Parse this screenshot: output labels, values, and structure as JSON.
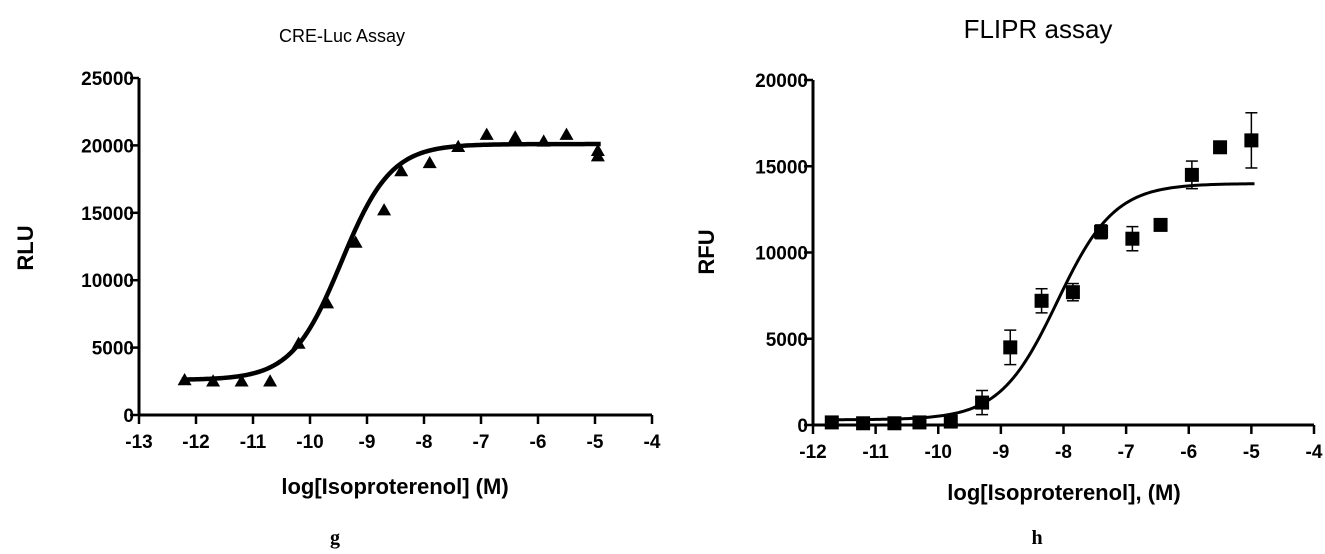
{
  "chart_data": [
    {
      "type": "scatter",
      "title": "CRE-Luc Assay",
      "xlabel": "log[Isoproterenol] (M)",
      "ylabel": "RLU",
      "xlim": [
        -13,
        -4
      ],
      "ylim": [
        0,
        25000
      ],
      "xticks": [
        -13,
        -12,
        -11,
        -10,
        -9,
        -8,
        -7,
        -6,
        -5,
        -4
      ],
      "yticks": [
        0,
        5000,
        10000,
        15000,
        20000,
        25000
      ],
      "marker": "triangle",
      "series": [
        {
          "x": [
            -12.2,
            -11.7,
            -11.2,
            -10.7,
            -10.2,
            -9.7,
            -9.2,
            -8.7,
            -8.4,
            -7.9,
            -7.4,
            -6.9,
            -6.4,
            -5.9,
            -5.5,
            -4.95,
            -4.95
          ],
          "y": [
            2600,
            2500,
            2500,
            2500,
            5300,
            8300,
            12800,
            15200,
            18100,
            18700,
            19900,
            20800,
            20600,
            20300,
            20800,
            19200,
            19600
          ]
        }
      ],
      "fit": {
        "bottom": 2600,
        "top": 20100,
        "logEC50": -9.45,
        "hill": 1.0
      },
      "panel_label": "g",
      "grid": false
    },
    {
      "type": "scatter",
      "title": "FLIPR assay",
      "xlabel": "log[Isoproterenol], (M)",
      "ylabel": "RFU",
      "xlim": [
        -12,
        -4
      ],
      "ylim": [
        0,
        20000
      ],
      "xticks": [
        -12,
        -11,
        -10,
        -9,
        -8,
        -7,
        -6,
        -5,
        -4
      ],
      "yticks": [
        0,
        5000,
        10000,
        15000,
        20000
      ],
      "marker": "square",
      "series": [
        {
          "x": [
            -11.7,
            -11.2,
            -10.7,
            -10.3,
            -9.8,
            -9.3,
            -8.85,
            -8.35,
            -7.85,
            -7.4,
            -6.9,
            -6.45,
            -5.95,
            -5.5,
            -5.0
          ],
          "y": [
            150,
            100,
            100,
            150,
            200,
            1300,
            4500,
            7200,
            7700,
            11200,
            10800,
            11600,
            14500,
            16100,
            16500
          ],
          "error": [
            0,
            0,
            0,
            0,
            0,
            700,
            1000,
            700,
            500,
            400,
            700,
            0,
            800,
            0,
            1600
          ]
        }
      ],
      "fit": {
        "bottom": 300,
        "top": 14000,
        "logEC50": -8.1,
        "hill": 0.95
      },
      "panel_label": "h",
      "grid": false
    }
  ]
}
